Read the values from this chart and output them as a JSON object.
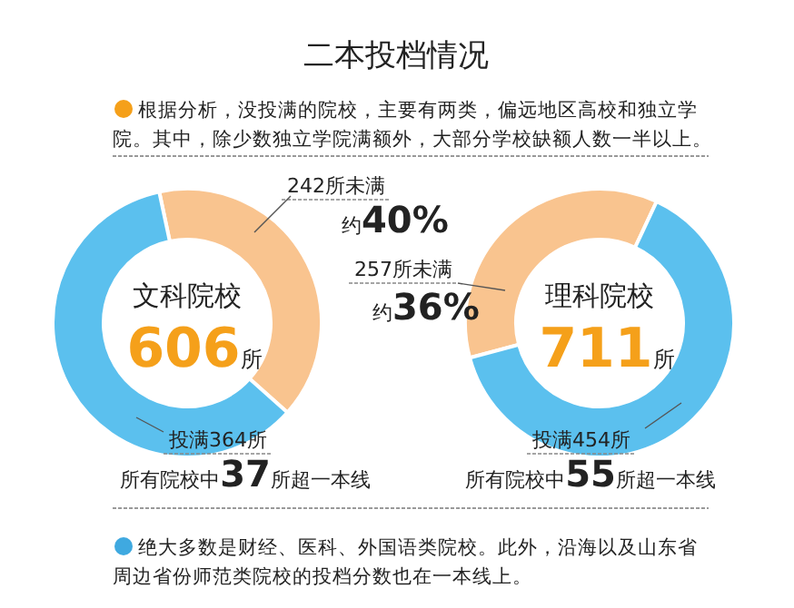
{
  "chart_data": [
    {
      "type": "donut",
      "title": "二本投档情况",
      "subtitle": "文科院校",
      "categories": [
        "242所未满",
        "投满364所"
      ],
      "values": [
        242,
        364
      ],
      "colors": [
        "#f9c48f",
        "#5bc0ee"
      ],
      "annotations": [
        "606所",
        "约40%",
        "所有院校中37所超一本线",
        "根据分析，没投满的院校，主要有两类，偏远地区高校和独立学院。其中，除少数独立学院满额外，大部分学校缺额人数一半以上。"
      ]
    },
    {
      "type": "donut",
      "subtitle": "理科院校",
      "categories": [
        "257所未满",
        "投满454所"
      ],
      "values": [
        257,
        454
      ],
      "colors": [
        "#f9c48f",
        "#5bc0ee"
      ],
      "annotations": [
        "711所",
        "约36%",
        "所有院校中55所超一本线",
        "绝大多数是财经、医科、外国语类院校。此外，沿海以及山东省周边省份师范类院校的投档分数也在一本线上。"
      ]
    }
  ]
}
